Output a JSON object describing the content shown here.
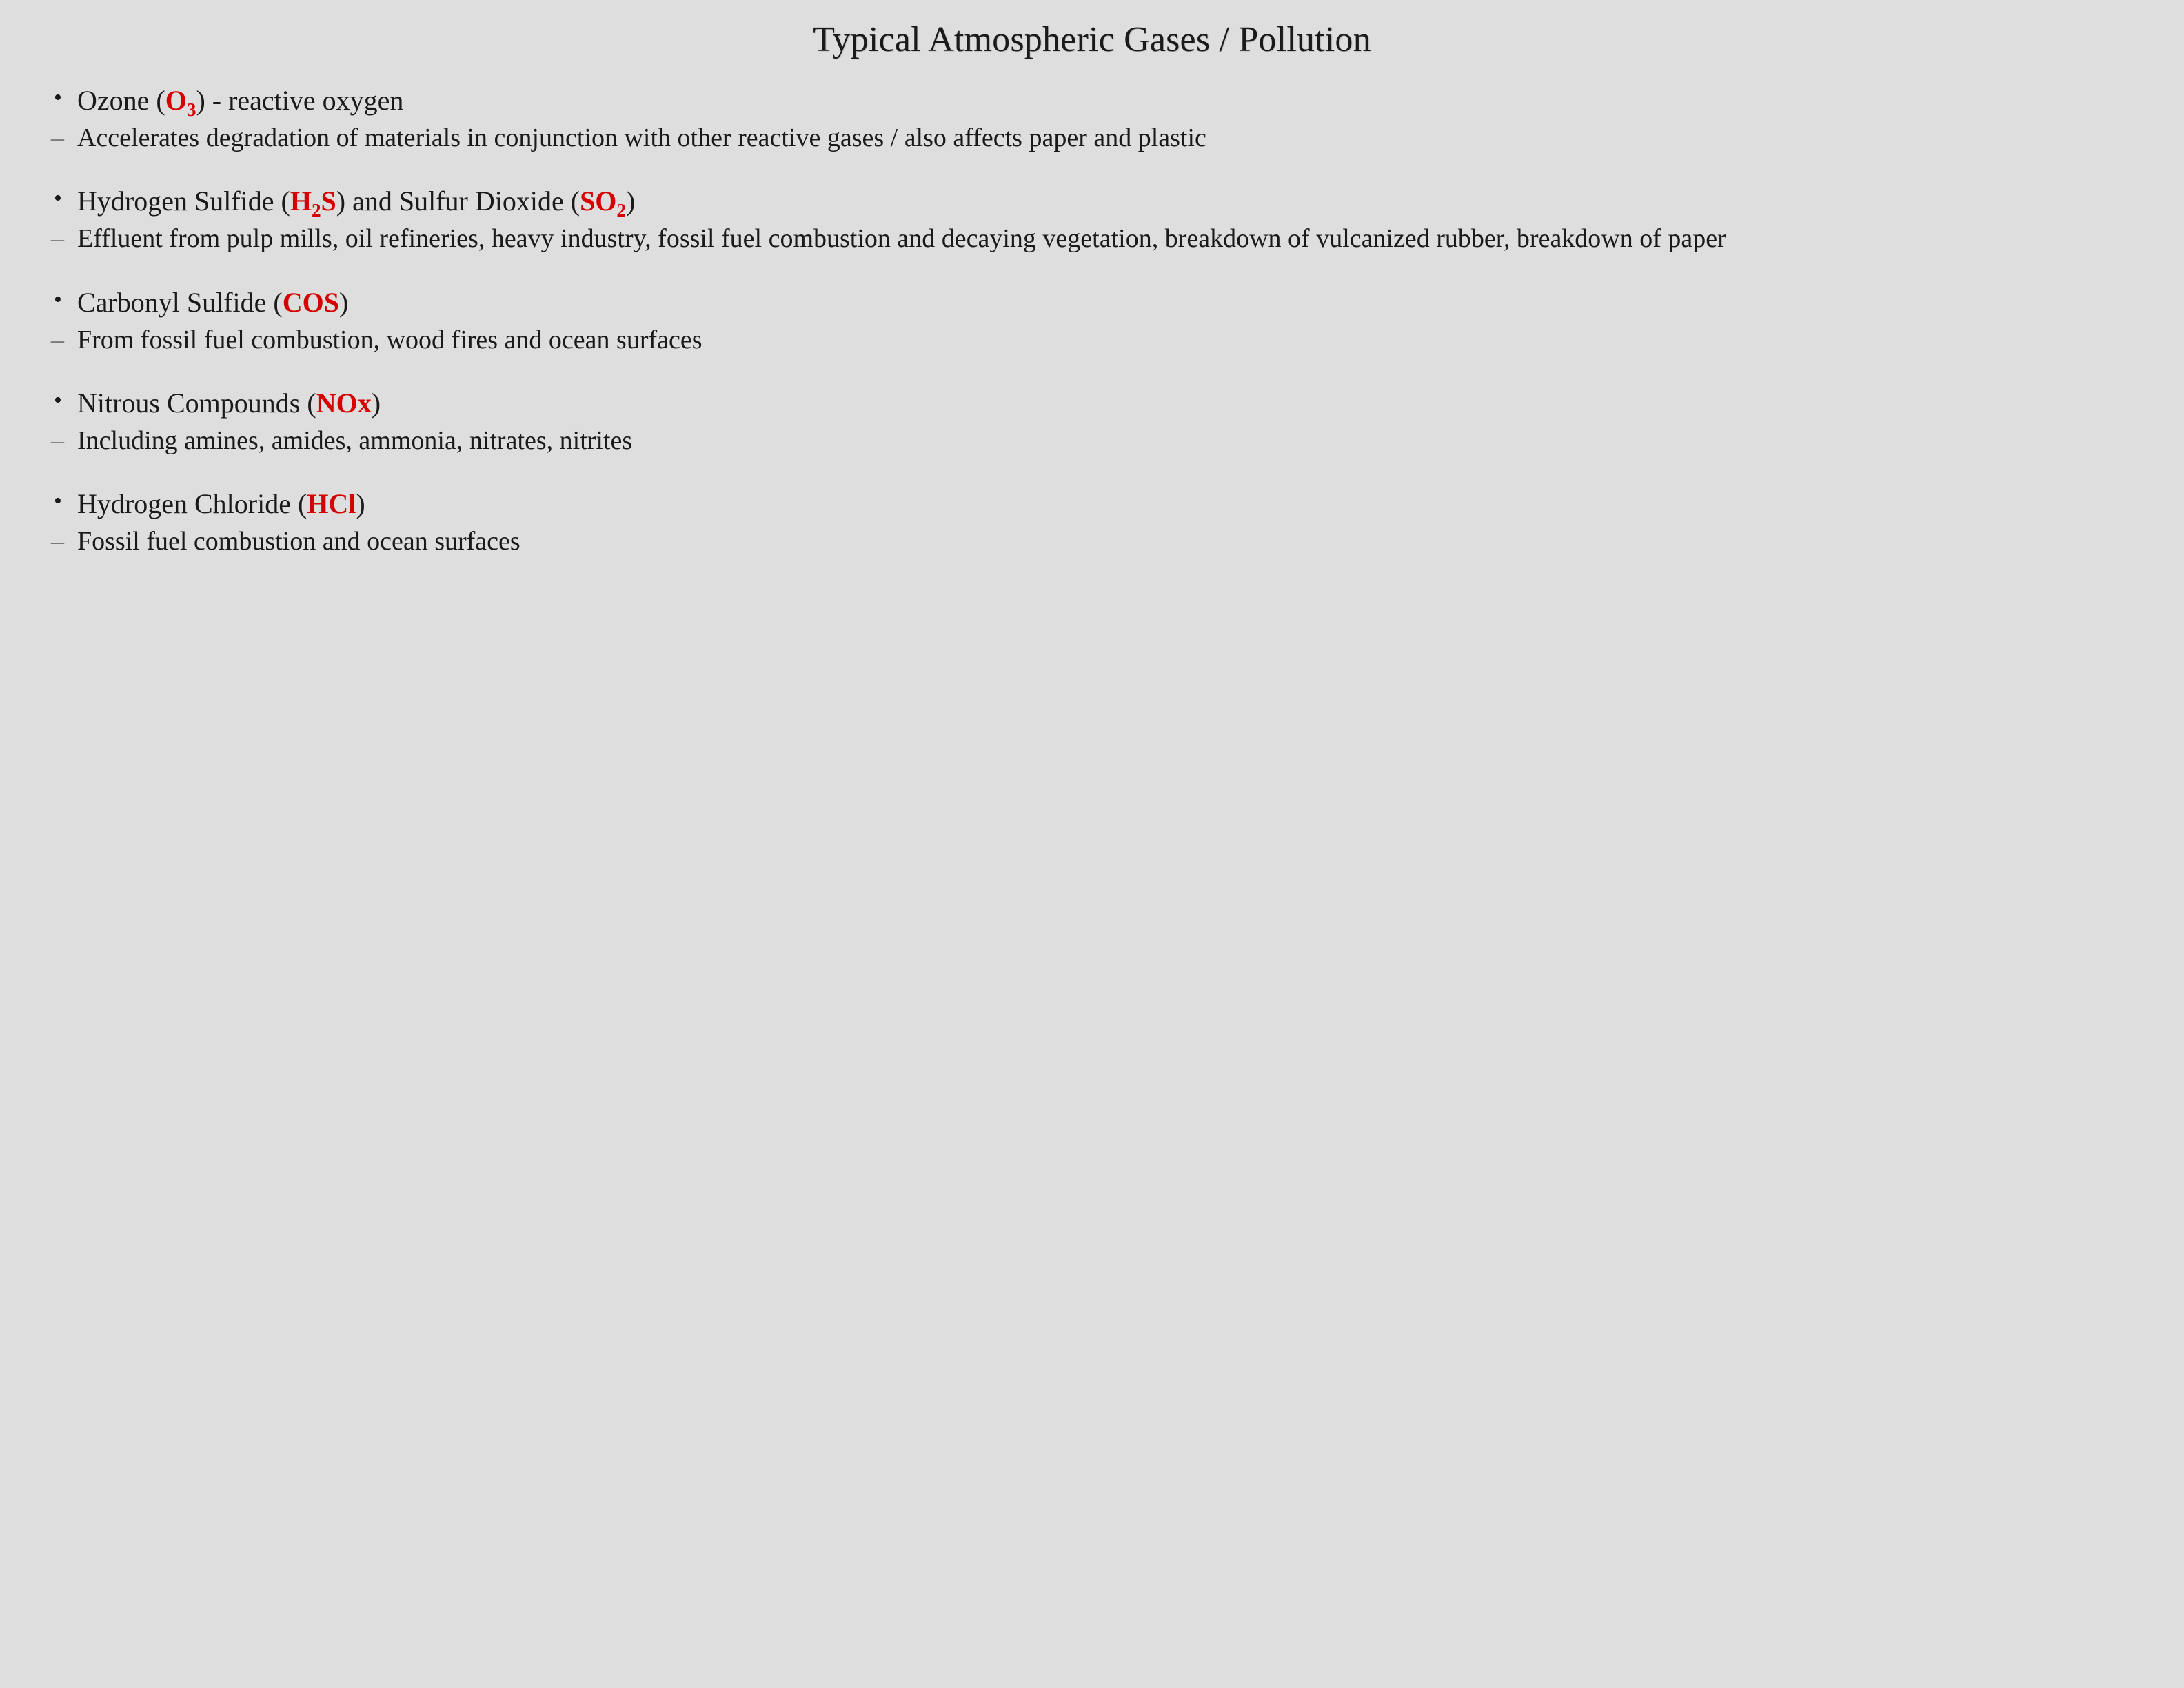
{
  "colors": {
    "background": "#dedede",
    "text": "#1a1a1a",
    "formula": "#d60000",
    "dash": "#7a7a7a"
  },
  "title": "Typical Atmospheric Gases / Pollution",
  "items": [
    {
      "lead_pre": "Ozone (",
      "formula_parts": [
        {
          "t": "O"
        },
        {
          "sub": "3"
        }
      ],
      "lead_post": ") - reactive oxygen",
      "desc": "Accelerates degradation of materials in conjunction with other reactive gases / also affects paper and plastic"
    },
    {
      "lead_pre": "Hydrogen Sulfide (",
      "formula_parts": [
        {
          "t": "H"
        },
        {
          "sub": "2"
        },
        {
          "t": "S"
        }
      ],
      "lead_mid": ") and Sulfur Dioxide (",
      "formula2_parts": [
        {
          "t": "SO"
        },
        {
          "sub": "2"
        }
      ],
      "lead_post2": ")",
      "desc": "Effluent from pulp mills, oil refineries, heavy industry, fossil fuel combustion and decaying vegetation, breakdown of vulcanized rubber, breakdown of paper"
    },
    {
      "lead_pre": " Carbonyl Sulfide (",
      "formula_parts": [
        {
          "t": "COS"
        }
      ],
      "lead_post": ")",
      "desc": "From fossil fuel combustion, wood fires and ocean surfaces"
    },
    {
      "lead_pre": "Nitrous Compounds (",
      "formula_parts": [
        {
          "t": "NOx"
        }
      ],
      "lead_post": ")",
      "desc": "Including amines, amides, ammonia, nitrates, nitrites"
    },
    {
      "lead_pre": "Hydrogen Chloride (",
      "formula_parts": [
        {
          "t": "HCl"
        }
      ],
      "lead_post": ")",
      "desc": "Fossil fuel combustion and ocean surfaces"
    }
  ]
}
